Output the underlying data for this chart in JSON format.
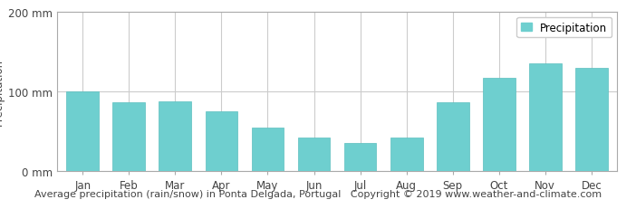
{
  "months": [
    "Jan",
    "Feb",
    "Mar",
    "Apr",
    "May",
    "Jun",
    "Jul",
    "Aug",
    "Sep",
    "Oct",
    "Nov",
    "Dec"
  ],
  "values": [
    100,
    87,
    88,
    75,
    55,
    42,
    36,
    42,
    86,
    117,
    135,
    130
  ],
  "bar_color": "#6ecfcf",
  "bar_edge_color": "#5bbfbf",
  "ylim": [
    0,
    200
  ],
  "yticks": [
    0,
    100,
    200
  ],
  "ytick_labels": [
    "0 mm",
    "100 mm",
    "200 mm"
  ],
  "ylabel": "Precipitation",
  "title": "Average precipitation (rain/snow) in Ponta Delgada, Portugal",
  "copyright": "Copyright © 2019 www.weather-and-climate.com",
  "legend_label": "Precipitation",
  "plot_bg_color": "#ffffff",
  "fig_bg_color": "#ffffff",
  "grid_color": "#cccccc",
  "title_fontsize": 8.0,
  "axis_label_fontsize": 8.5,
  "tick_fontsize": 8.5,
  "label_color": "#444444",
  "bottom_strip_color": "#e8e8e8"
}
